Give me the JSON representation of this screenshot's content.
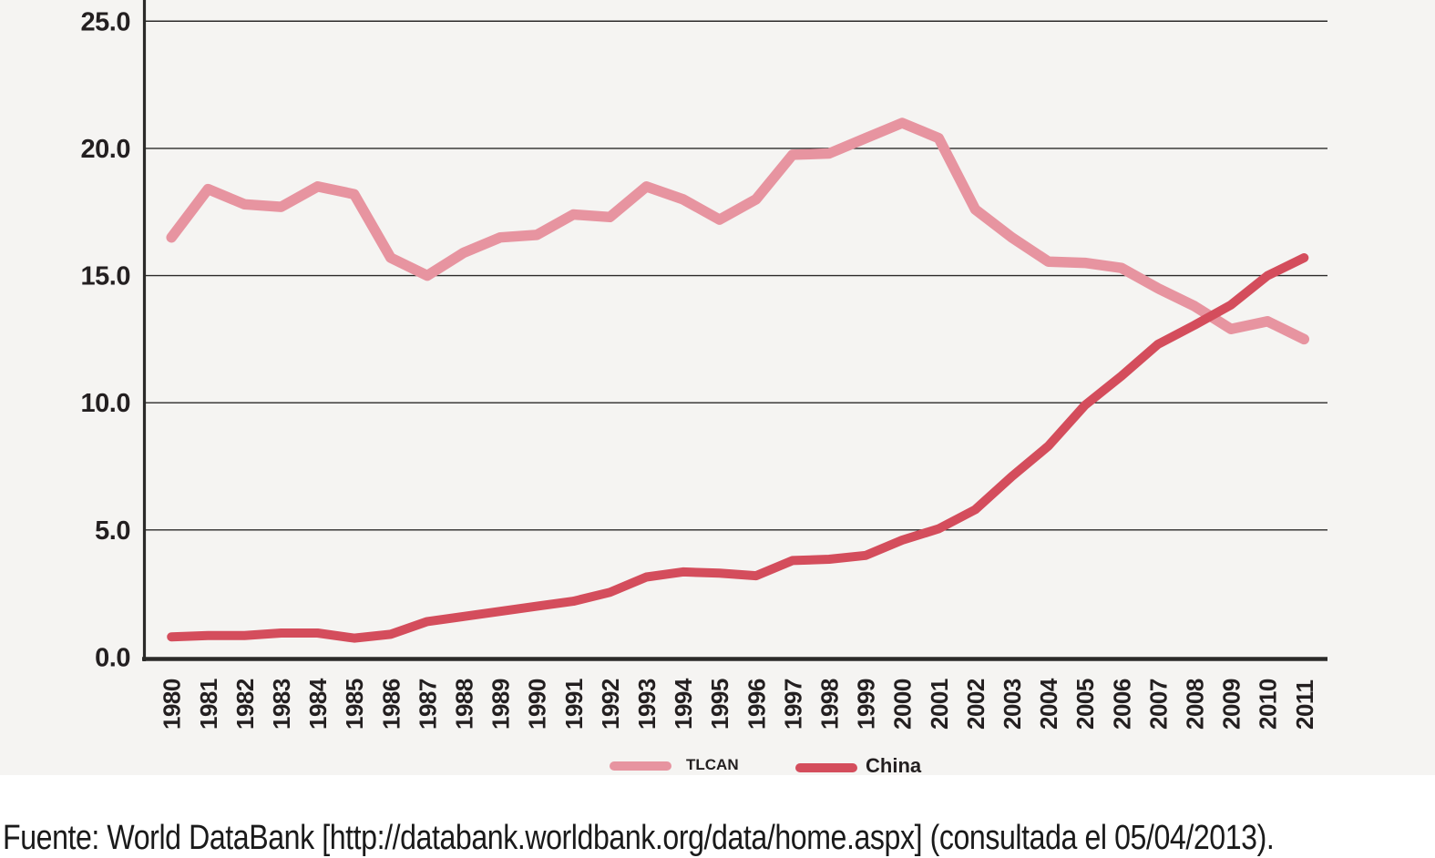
{
  "chart_data": {
    "type": "line",
    "title": "",
    "xlabel": "",
    "ylabel": "",
    "x": [
      1980,
      1981,
      1982,
      1983,
      1984,
      1985,
      1986,
      1987,
      1988,
      1989,
      1990,
      1991,
      1992,
      1993,
      1994,
      1995,
      1996,
      1997,
      1998,
      1999,
      2000,
      2001,
      2002,
      2003,
      2004,
      2005,
      2006,
      2007,
      2008,
      2009,
      2010,
      2011
    ],
    "series": [
      {
        "name": "TLCAN",
        "color": "#e794a0",
        "stroke_width": 11.5,
        "values": [
          16.5,
          18.4,
          17.8,
          17.7,
          18.5,
          18.2,
          15.7,
          15.0,
          15.9,
          16.5,
          16.6,
          17.4,
          17.3,
          18.5,
          18.0,
          17.2,
          18.0,
          19.75,
          19.8,
          20.4,
          21.0,
          20.4,
          17.6,
          16.5,
          15.55,
          15.5,
          15.3,
          14.5,
          13.8,
          12.9,
          13.2,
          12.5
        ]
      },
      {
        "name": "China",
        "color": "#d44d5c",
        "stroke_width": 10,
        "values": [
          0.8,
          0.85,
          0.85,
          0.95,
          0.95,
          0.75,
          0.9,
          1.4,
          1.6,
          1.8,
          2.0,
          2.2,
          2.55,
          3.15,
          3.35,
          3.3,
          3.2,
          3.8,
          3.85,
          4.0,
          4.6,
          5.05,
          5.8,
          7.1,
          8.3,
          9.9,
          11.05,
          12.3,
          13.05,
          13.85,
          15.0,
          15.7
        ]
      }
    ],
    "ylim": [
      0,
      25
    ],
    "yticks": [
      0,
      5,
      10,
      15,
      20,
      25
    ],
    "ytick_labels": [
      "0.0",
      "5.0",
      "10.0",
      "15.0",
      "20.0",
      "25.0"
    ],
    "grid": "horizontal",
    "legend_position": "bottom-center",
    "plot_background": "#f5f4f2",
    "axis_color": "#2b2a29",
    "label_color": "#231f20"
  },
  "source_note": "Fuente: World DataBank [http://databank.worldbank.org/data/home.aspx] (consultada el 05/04/2013)."
}
